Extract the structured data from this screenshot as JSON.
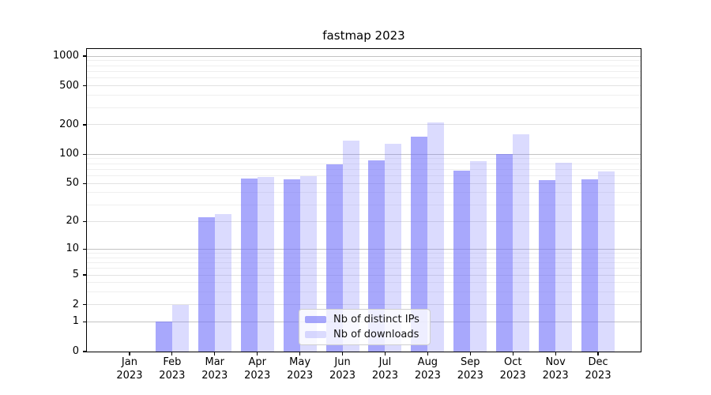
{
  "chart_data": {
    "type": "bar",
    "title": "fastmap 2023",
    "y_scale": "symlog-log1p",
    "grid": true,
    "legend_position": "lower center",
    "categories": [
      "Jan 2023",
      "Feb 2023",
      "Mar 2023",
      "Apr 2023",
      "May 2023",
      "Jun 2023",
      "Jul 2023",
      "Aug 2023",
      "Sep 2023",
      "Oct 2023",
      "Nov 2023",
      "Dec 2023"
    ],
    "series": [
      {
        "name": "Nb of distinct IPs",
        "color": "rgba(110,110,250,0.6)",
        "values": [
          0,
          1,
          22,
          56,
          55,
          78,
          86,
          152,
          68,
          100,
          54,
          55
        ]
      },
      {
        "name": "Nb of downloads",
        "color": "rgba(110,110,250,0.25)",
        "values": [
          0,
          2,
          24,
          58,
          59,
          137,
          129,
          213,
          85,
          160,
          82,
          66
        ]
      }
    ],
    "y_ticks": [
      0,
      1,
      2,
      5,
      10,
      20,
      50,
      100,
      200,
      500,
      1000
    ],
    "ylim": [
      0,
      1182
    ],
    "xlabel": "",
    "ylabel": ""
  },
  "legend": {
    "items": [
      {
        "label": "Nb of distinct IPs"
      },
      {
        "label": "Nb of downloads"
      }
    ]
  },
  "colors": {
    "bar_dark": "rgba(110,110,250,0.6)",
    "bar_light": "rgba(110,110,250,0.25)",
    "grid_major": "#c3c3c3",
    "grid_mid": "#e2e2e2",
    "grid_minor": "#efefef",
    "axis": "#000000",
    "legend_border": "#cfcfcf"
  }
}
